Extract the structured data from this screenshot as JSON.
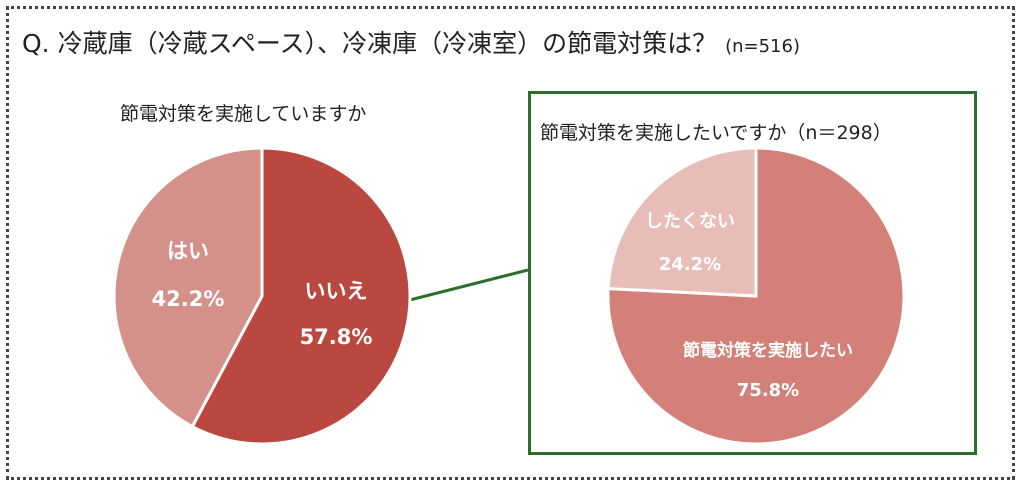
{
  "title": {
    "question": "Q.  冷蔵庫（冷蔵スペース）、冷凍庫（冷凍室）の節電対策は？",
    "n": "(n=516)"
  },
  "colors": {
    "left_yes": "#d4918a",
    "left_no": "#bb4840",
    "right_dont": "#e8bdb8",
    "right_want": "#d28078",
    "connector": "#2e6e2c",
    "box_border": "#2e6e2c"
  },
  "chart_data": [
    {
      "type": "pie",
      "title": "節電対策を実施していますか",
      "slices": [
        {
          "label": "いいえ",
          "value": 57.8,
          "value_label": "57.8%"
        },
        {
          "label": "はい",
          "value": 42.2,
          "value_label": "42.2%"
        }
      ]
    },
    {
      "type": "pie",
      "title": "節電対策を実施したいですか（n＝298）",
      "slices": [
        {
          "label": "節電対策を実施したい",
          "value": 75.8,
          "value_label": "75.8%"
        },
        {
          "label": "したくない",
          "value": 24.2,
          "value_label": "24.2%"
        }
      ]
    }
  ]
}
